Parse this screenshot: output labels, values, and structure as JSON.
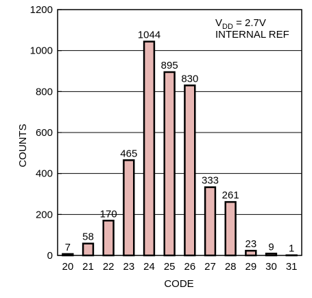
{
  "chart_data": {
    "type": "bar",
    "categories": [
      "20",
      "21",
      "22",
      "23",
      "24",
      "25",
      "26",
      "27",
      "28",
      "29",
      "30",
      "31"
    ],
    "values": [
      7,
      58,
      170,
      465,
      1044,
      895,
      830,
      333,
      261,
      23,
      9,
      1
    ],
    "data_labels": [
      "7",
      "58",
      "170",
      "465",
      "1044",
      "895",
      "830",
      "333",
      "261",
      "23",
      "9",
      "1"
    ],
    "xlabel": "CODE",
    "ylabel": "COUNTS",
    "ylim": [
      0,
      1200
    ],
    "yticks": [
      "0",
      "200",
      "400",
      "600",
      "800",
      "1000",
      "1200"
    ],
    "grid": true,
    "legend": "none",
    "bar_color": "#e8b7b4",
    "bar_edge_color": "#000000",
    "annotation": {
      "vdd_symbol": "V",
      "vdd_subscript": "DD",
      "vdd_value": " = 2.7V",
      "ref_text": "INTERNAL REF"
    }
  }
}
